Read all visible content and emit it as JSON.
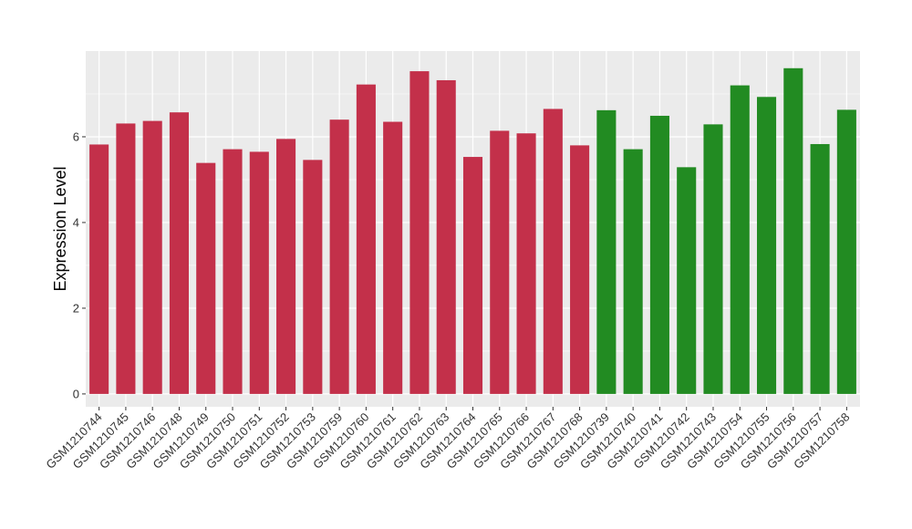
{
  "chart_data": {
    "type": "bar",
    "title": "",
    "xlabel": "",
    "ylabel": "Expression Level",
    "ylim": [
      -0.3,
      8.0
    ],
    "yticks": [
      0,
      2,
      4,
      6
    ],
    "grid": true,
    "legend": "none",
    "colors": {
      "group_a": "#C3304A",
      "group_b": "#228B22",
      "panel": "#EBEBEB",
      "gridline": "#FFFFFF"
    },
    "categories": [
      "GSM1210744",
      "GSM1210745",
      "GSM1210746",
      "GSM1210748",
      "GSM1210749",
      "GSM1210750",
      "GSM1210751",
      "GSM1210752",
      "GSM1210753",
      "GSM1210759",
      "GSM1210760",
      "GSM1210761",
      "GSM1210762",
      "GSM1210763",
      "GSM1210764",
      "GSM1210765",
      "GSM1210766",
      "GSM1210767",
      "GSM1210768",
      "GSM1210739",
      "GSM1210740",
      "GSM1210741",
      "GSM1210742",
      "GSM1210743",
      "GSM1210754",
      "GSM1210755",
      "GSM1210756",
      "GSM1210757",
      "GSM1210758"
    ],
    "values": [
      5.82,
      6.31,
      6.37,
      6.57,
      5.39,
      5.71,
      5.65,
      5.95,
      5.46,
      6.4,
      7.22,
      6.35,
      7.53,
      7.32,
      5.53,
      6.14,
      6.08,
      6.65,
      5.8,
      6.62,
      5.71,
      6.49,
      5.29,
      6.29,
      7.2,
      6.93,
      7.6,
      5.83,
      6.63
    ],
    "groups": [
      "a",
      "a",
      "a",
      "a",
      "a",
      "a",
      "a",
      "a",
      "a",
      "a",
      "a",
      "a",
      "a",
      "a",
      "a",
      "a",
      "a",
      "a",
      "a",
      "b",
      "b",
      "b",
      "b",
      "b",
      "b",
      "b",
      "b",
      "b",
      "b"
    ]
  }
}
